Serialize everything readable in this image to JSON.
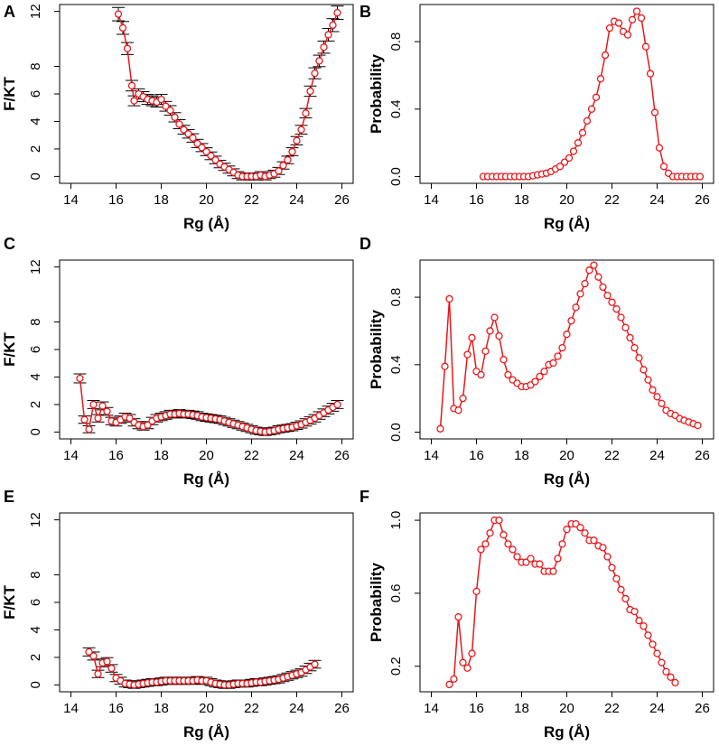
{
  "colors": {
    "series": "#e8191c",
    "errorbar": "#000000",
    "axis": "#000000"
  },
  "chart_data": [
    {
      "panel": "A",
      "type": "line",
      "xlabel": "Rg (Å)",
      "ylabel": "F/KT",
      "xlim": [
        13.5,
        26.5
      ],
      "ylim": [
        -0.5,
        12.5
      ],
      "xticks": [
        14,
        16,
        18,
        20,
        22,
        24,
        26
      ],
      "yticks": [
        0,
        2,
        4,
        6,
        8,
        12
      ],
      "error_bars": true,
      "x": [
        16.1,
        16.3,
        16.5,
        16.7,
        16.8,
        17.0,
        17.2,
        17.4,
        17.6,
        17.8,
        18.0,
        18.2,
        18.4,
        18.6,
        18.8,
        19.0,
        19.2,
        19.4,
        19.6,
        19.8,
        20.0,
        20.2,
        20.4,
        20.6,
        20.8,
        21.0,
        21.2,
        21.4,
        21.6,
        21.8,
        22.0,
        22.2,
        22.4,
        22.6,
        22.8,
        23.0,
        23.2,
        23.4,
        23.6,
        23.8,
        24.0,
        24.2,
        24.4,
        24.6,
        24.8,
        25.0,
        25.2,
        25.4,
        25.6,
        25.8
      ],
      "y": [
        11.8,
        10.8,
        9.3,
        6.6,
        5.5,
        6.0,
        5.8,
        5.6,
        5.5,
        5.4,
        5.6,
        5.1,
        4.8,
        4.3,
        3.8,
        3.4,
        3.1,
        2.8,
        2.4,
        2.1,
        1.8,
        1.5,
        1.2,
        0.9,
        0.7,
        0.5,
        0.3,
        0.1,
        0.0,
        0.0,
        0.0,
        0.0,
        0.1,
        0.0,
        0.1,
        0.2,
        0.4,
        0.8,
        1.2,
        1.8,
        2.6,
        3.4,
        4.6,
        6.2,
        7.5,
        8.4,
        9.4,
        10.3,
        11.0,
        11.9
      ]
    },
    {
      "panel": "B",
      "type": "line",
      "xlabel": "Rg (Å)",
      "ylabel": "Probability",
      "xlim": [
        13.5,
        26.5
      ],
      "ylim": [
        -0.04,
        1.02
      ],
      "xticks": [
        14,
        16,
        18,
        20,
        22,
        24,
        26
      ],
      "yticks": [
        0.0,
        0.4,
        0.8
      ],
      "error_bars": false,
      "x": [
        16.3,
        16.5,
        16.7,
        16.9,
        17.1,
        17.3,
        17.5,
        17.7,
        17.9,
        18.1,
        18.3,
        18.5,
        18.7,
        18.9,
        19.1,
        19.3,
        19.5,
        19.7,
        19.9,
        20.1,
        20.3,
        20.5,
        20.7,
        20.9,
        21.1,
        21.3,
        21.5,
        21.7,
        21.9,
        22.1,
        22.3,
        22.5,
        22.7,
        22.9,
        23.1,
        23.3,
        23.5,
        23.7,
        23.9,
        24.1,
        24.3,
        24.5,
        24.7,
        24.9,
        25.1,
        25.3,
        25.5,
        25.7,
        25.9
      ],
      "y": [
        0,
        0,
        0,
        0,
        0,
        0,
        0,
        0,
        0,
        0,
        0,
        0.005,
        0.01,
        0.015,
        0.02,
        0.03,
        0.045,
        0.06,
        0.085,
        0.11,
        0.15,
        0.2,
        0.26,
        0.33,
        0.4,
        0.47,
        0.58,
        0.72,
        0.88,
        0.92,
        0.91,
        0.86,
        0.84,
        0.93,
        0.98,
        0.94,
        0.77,
        0.61,
        0.38,
        0.17,
        0.06,
        0.02,
        0,
        0,
        0,
        0,
        0,
        0,
        0
      ]
    },
    {
      "panel": "C",
      "type": "line",
      "xlabel": "Rg (Å)",
      "ylabel": "F/KT",
      "xlim": [
        13.5,
        26.5
      ],
      "ylim": [
        -0.5,
        12.5
      ],
      "xticks": [
        14,
        16,
        18,
        20,
        22,
        24,
        26
      ],
      "yticks": [
        0,
        2,
        4,
        6,
        8,
        12
      ],
      "error_bars": true,
      "x": [
        14.4,
        14.6,
        14.8,
        15.0,
        15.2,
        15.4,
        15.6,
        15.8,
        16.0,
        16.2,
        16.4,
        16.6,
        16.8,
        17.0,
        17.2,
        17.4,
        17.6,
        17.8,
        18.0,
        18.2,
        18.4,
        18.6,
        18.8,
        19.0,
        19.2,
        19.4,
        19.6,
        19.8,
        20.0,
        20.2,
        20.4,
        20.6,
        20.8,
        21.0,
        21.2,
        21.4,
        21.6,
        21.8,
        22.0,
        22.2,
        22.4,
        22.6,
        22.8,
        23.0,
        23.2,
        23.4,
        23.6,
        23.8,
        24.0,
        24.2,
        24.4,
        24.6,
        24.8,
        25.0,
        25.2,
        25.4,
        25.6,
        25.8
      ],
      "y": [
        3.9,
        0.9,
        0.2,
        2.0,
        1.0,
        1.9,
        1.5,
        0.8,
        0.7,
        0.9,
        1.1,
        1.0,
        0.7,
        0.5,
        0.4,
        0.5,
        0.8,
        1.0,
        1.1,
        1.2,
        1.3,
        1.3,
        1.35,
        1.3,
        1.3,
        1.25,
        1.2,
        1.1,
        1.05,
        1.0,
        0.95,
        0.9,
        0.8,
        0.7,
        0.6,
        0.5,
        0.4,
        0.3,
        0.2,
        0.1,
        0.05,
        0.0,
        0.05,
        0.1,
        0.2,
        0.25,
        0.3,
        0.35,
        0.45,
        0.55,
        0.7,
        0.85,
        1.0,
        1.2,
        1.4,
        1.6,
        1.8,
        2.0
      ]
    },
    {
      "panel": "D",
      "type": "line",
      "xlabel": "Rg (Å)",
      "ylabel": "Probability",
      "xlim": [
        13.5,
        26.5
      ],
      "ylim": [
        -0.04,
        1.02
      ],
      "xticks": [
        14,
        16,
        18,
        20,
        22,
        24,
        26
      ],
      "yticks": [
        0.0,
        0.4,
        0.8
      ],
      "error_bars": false,
      "x": [
        14.4,
        14.6,
        14.8,
        15.0,
        15.2,
        15.4,
        15.6,
        15.8,
        16.0,
        16.2,
        16.4,
        16.6,
        16.8,
        17.0,
        17.2,
        17.4,
        17.6,
        17.8,
        18.0,
        18.2,
        18.4,
        18.6,
        18.8,
        19.0,
        19.2,
        19.4,
        19.6,
        19.8,
        20.0,
        20.2,
        20.4,
        20.6,
        20.8,
        21.0,
        21.2,
        21.4,
        21.6,
        21.8,
        22.0,
        22.2,
        22.4,
        22.6,
        22.8,
        23.0,
        23.2,
        23.4,
        23.6,
        23.8,
        24.0,
        24.2,
        24.4,
        24.6,
        24.8,
        25.0,
        25.2,
        25.4,
        25.6,
        25.8
      ],
      "y": [
        0.02,
        0.39,
        0.79,
        0.14,
        0.13,
        0.2,
        0.46,
        0.56,
        0.36,
        0.34,
        0.48,
        0.6,
        0.68,
        0.57,
        0.43,
        0.34,
        0.31,
        0.29,
        0.27,
        0.27,
        0.28,
        0.3,
        0.33,
        0.36,
        0.4,
        0.41,
        0.45,
        0.5,
        0.58,
        0.66,
        0.74,
        0.82,
        0.88,
        0.96,
        0.99,
        0.92,
        0.86,
        0.81,
        0.77,
        0.73,
        0.68,
        0.62,
        0.56,
        0.5,
        0.44,
        0.37,
        0.31,
        0.25,
        0.21,
        0.17,
        0.13,
        0.11,
        0.1,
        0.08,
        0.07,
        0.06,
        0.05,
        0.04
      ]
    },
    {
      "panel": "E",
      "type": "line",
      "xlabel": "Rg (Å)",
      "ylabel": "F/KT",
      "xlim": [
        13.5,
        26.5
      ],
      "ylim": [
        -0.5,
        12.5
      ],
      "xticks": [
        14,
        16,
        18,
        20,
        22,
        24,
        26
      ],
      "yticks": [
        0,
        2,
        4,
        6,
        8,
        12
      ],
      "error_bars": true,
      "x": [
        14.8,
        15.0,
        15.2,
        15.4,
        15.6,
        15.8,
        16.0,
        16.2,
        16.4,
        16.6,
        16.8,
        17.0,
        17.2,
        17.4,
        17.6,
        17.8,
        18.0,
        18.2,
        18.4,
        18.6,
        18.8,
        19.0,
        19.2,
        19.4,
        19.6,
        19.8,
        20.0,
        20.2,
        20.4,
        20.6,
        20.8,
        21.0,
        21.2,
        21.4,
        21.6,
        21.8,
        22.0,
        22.2,
        22.4,
        22.6,
        22.8,
        23.0,
        23.2,
        23.4,
        23.6,
        23.8,
        24.0,
        24.2,
        24.4,
        24.6,
        24.8
      ],
      "y": [
        2.4,
        2.1,
        0.8,
        1.6,
        1.7,
        1.2,
        0.5,
        0.3,
        0.1,
        0.05,
        0.0,
        0.05,
        0.1,
        0.15,
        0.2,
        0.2,
        0.25,
        0.3,
        0.3,
        0.3,
        0.3,
        0.3,
        0.3,
        0.3,
        0.35,
        0.3,
        0.3,
        0.2,
        0.1,
        0.05,
        0.0,
        0.0,
        0.05,
        0.1,
        0.1,
        0.1,
        0.15,
        0.2,
        0.2,
        0.25,
        0.3,
        0.35,
        0.4,
        0.5,
        0.6,
        0.7,
        0.8,
        0.9,
        1.1,
        1.3,
        1.5
      ]
    },
    {
      "panel": "F",
      "type": "line",
      "xlabel": "Rg (Å)",
      "ylabel": "Probability",
      "xlim": [
        13.5,
        26.5
      ],
      "ylim": [
        0.06,
        1.04
      ],
      "xticks": [
        14,
        16,
        18,
        20,
        22,
        24,
        26
      ],
      "yticks": [
        0.2,
        0.6,
        1.0
      ],
      "error_bars": false,
      "x": [
        14.8,
        15.0,
        15.2,
        15.4,
        15.6,
        15.8,
        16.0,
        16.2,
        16.4,
        16.6,
        16.8,
        17.0,
        17.2,
        17.4,
        17.6,
        17.8,
        18.0,
        18.2,
        18.4,
        18.6,
        18.8,
        19.0,
        19.2,
        19.4,
        19.6,
        19.8,
        20.0,
        20.2,
        20.4,
        20.6,
        20.8,
        21.0,
        21.2,
        21.4,
        21.6,
        21.8,
        22.0,
        22.2,
        22.4,
        22.6,
        22.8,
        23.0,
        23.2,
        23.4,
        23.6,
        23.8,
        24.0,
        24.2,
        24.4,
        24.6,
        24.8
      ],
      "y": [
        0.1,
        0.13,
        0.47,
        0.22,
        0.19,
        0.27,
        0.61,
        0.84,
        0.87,
        0.93,
        1.0,
        1.0,
        0.92,
        0.87,
        0.84,
        0.8,
        0.77,
        0.77,
        0.79,
        0.76,
        0.76,
        0.72,
        0.72,
        0.72,
        0.79,
        0.87,
        0.95,
        0.98,
        0.98,
        0.96,
        0.93,
        0.89,
        0.89,
        0.86,
        0.85,
        0.8,
        0.74,
        0.68,
        0.62,
        0.57,
        0.51,
        0.5,
        0.45,
        0.42,
        0.37,
        0.32,
        0.27,
        0.22,
        0.17,
        0.14,
        0.11
      ]
    }
  ]
}
